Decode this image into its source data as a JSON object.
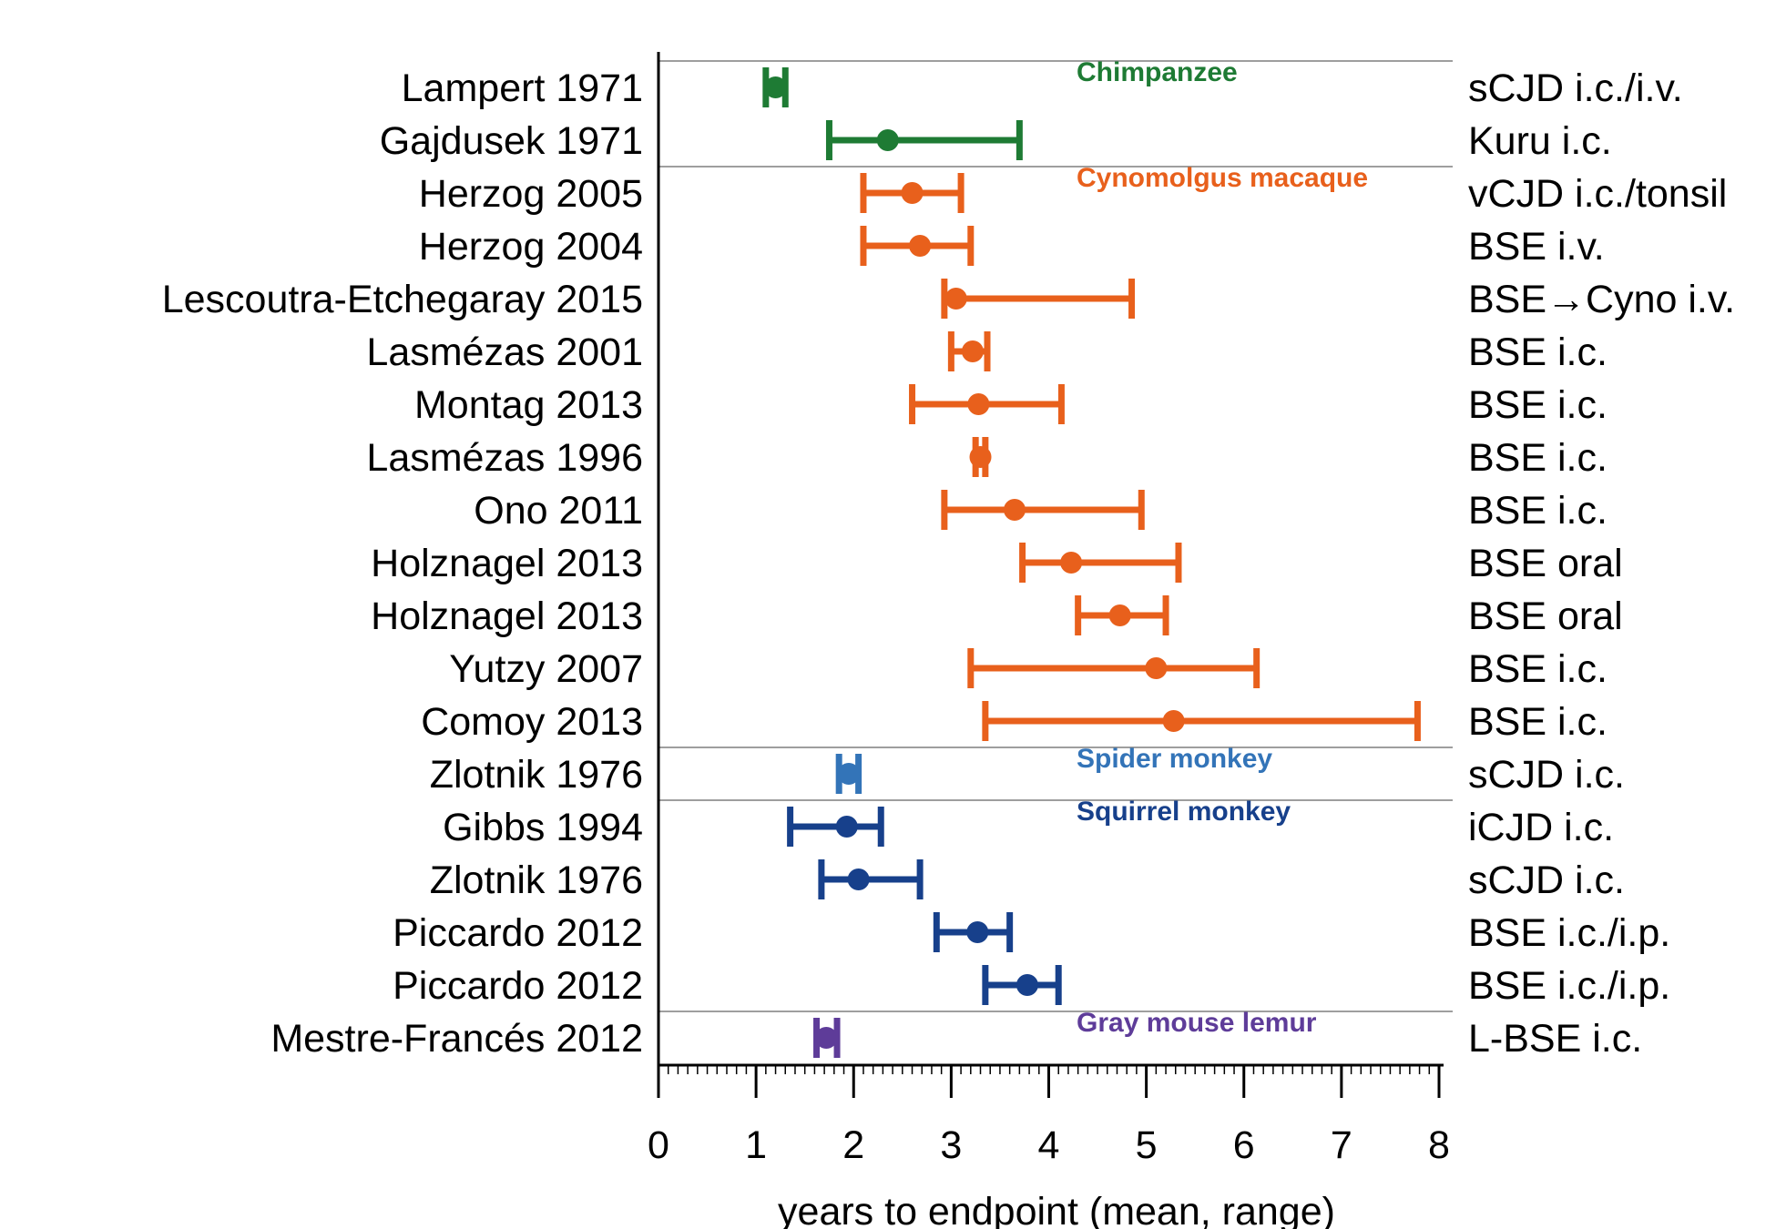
{
  "chart_data": {
    "type": "range-dot",
    "xlabel": "years to endpoint (mean, range)",
    "xlim": [
      0,
      8
    ],
    "xticks": [
      "0",
      "1",
      "2",
      "3",
      "4",
      "5",
      "6",
      "7",
      "8"
    ],
    "grid": false,
    "groups": [
      {
        "name": "Chimpanzee",
        "color": "#1e7b34",
        "rows": [
          {
            "study": "Lampert 1971",
            "route": "sCJD i.c./i.v.",
            "mean": 1.2,
            "min": 1.1,
            "max": 1.3
          },
          {
            "study": "Gajdusek 1971",
            "route": "Kuru i.c.",
            "mean": 2.35,
            "min": 1.75,
            "max": 3.7
          }
        ]
      },
      {
        "name": "Cynomolgus macaque",
        "color": "#e8601c",
        "rows": [
          {
            "study": "Herzog 2005",
            "route": "vCJD i.c./tonsil",
            "mean": 2.6,
            "min": 2.1,
            "max": 3.1
          },
          {
            "study": "Herzog 2004",
            "route": "BSE i.v.",
            "mean": 2.68,
            "min": 2.1,
            "max": 3.2
          },
          {
            "study": "Lescoutra-Etchegaray 2015",
            "route": "BSE→Cyno i.v.",
            "mean": 3.05,
            "min": 2.93,
            "max": 4.85
          },
          {
            "study": "Lasmézas 2001",
            "route": "BSE i.c.",
            "mean": 3.22,
            "min": 3.0,
            "max": 3.37
          },
          {
            "study": "Montag 2013",
            "route": "BSE i.c.",
            "mean": 3.28,
            "min": 2.6,
            "max": 4.13
          },
          {
            "study": "Lasmézas 1996",
            "route": "BSE i.c.",
            "mean": 3.3,
            "min": 3.25,
            "max": 3.35
          },
          {
            "study": "Ono 2011",
            "route": "BSE i.c.",
            "mean": 3.65,
            "min": 2.93,
            "max": 4.95
          },
          {
            "study": "Holznagel 2013",
            "route": "BSE oral",
            "mean": 4.23,
            "min": 3.73,
            "max": 5.33
          },
          {
            "study": "Holznagel 2013",
            "route": "BSE oral",
            "mean": 4.73,
            "min": 4.3,
            "max": 5.2
          },
          {
            "study": "Yutzy 2007",
            "route": "BSE i.c.",
            "mean": 5.1,
            "min": 3.2,
            "max": 6.13
          },
          {
            "study": "Comoy 2013",
            "route": "BSE i.c.",
            "mean": 5.28,
            "min": 3.35,
            "max": 7.78
          }
        ]
      },
      {
        "name": "Spider monkey",
        "color": "#3374b8",
        "rows": [
          {
            "study": "Zlotnik 1976",
            "route": "sCJD i.c.",
            "mean": 1.95,
            "min": 1.85,
            "max": 2.05
          }
        ]
      },
      {
        "name": "Squirrel monkey",
        "color": "#17408b",
        "rows": [
          {
            "study": "Gibbs 1994",
            "route": "iCJD i.c.",
            "mean": 1.93,
            "min": 1.35,
            "max": 2.28
          },
          {
            "study": "Zlotnik 1976",
            "route": "sCJD i.c.",
            "mean": 2.05,
            "min": 1.67,
            "max": 2.68
          },
          {
            "study": "Piccardo 2012",
            "route": "BSE i.c./i.p.",
            "mean": 3.27,
            "min": 2.85,
            "max": 3.6
          },
          {
            "study": "Piccardo 2012",
            "route": "BSE i.c./i.p.",
            "mean": 3.78,
            "min": 3.35,
            "max": 4.1
          }
        ]
      },
      {
        "name": "Gray mouse lemur",
        "color": "#5e3c99",
        "rows": [
          {
            "study": "Mestre-Francés 2012",
            "route": "L-BSE i.c.",
            "mean": 1.72,
            "min": 1.62,
            "max": 1.83
          }
        ]
      }
    ]
  }
}
